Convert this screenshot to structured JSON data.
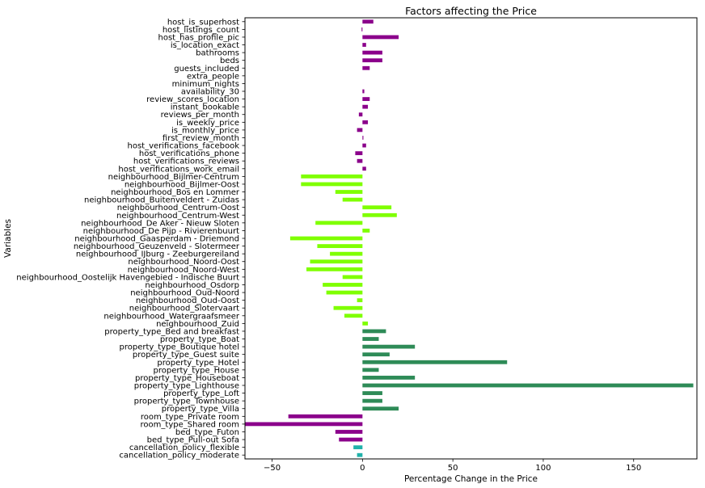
{
  "chart_data": {
    "type": "bar",
    "orientation": "horizontal",
    "title": "Factors affecting the Price",
    "xlabel": "Percentage Change in the Price",
    "ylabel": "Variables",
    "xlim": [
      -65,
      185
    ],
    "xticks": [
      -50,
      0,
      50,
      100,
      150
    ],
    "xtick_labels": [
      "−50",
      "0",
      "50",
      "100",
      "150"
    ],
    "grid": false,
    "legend": "none",
    "colors": {
      "cancellation": "#20b2aa",
      "room_bed": "#8b008b",
      "property": "#2e8b57",
      "neighbourhood": "#7fff00",
      "host_misc": "#8b008b"
    },
    "categories": [
      "cancellation_policy_moderate",
      "cancellation_policy_flexible",
      "bed_type_Pull-out Sofa",
      "bed_type_Futon",
      "room_type_Shared room",
      "room_type_Private room",
      "property_type_Villa",
      "property_type_Townhouse",
      "property_type_Loft",
      "property_type_Lighthouse",
      "property_type_Houseboat",
      "property_type_House",
      "property_type_Hotel",
      "property_type_Guest suite",
      "property_type_Boutique hotel",
      "property_type_Boat",
      "property_type_Bed and breakfast",
      "neighbourhood_Zuid",
      "neighbourhood_Watergraafsmeer",
      "neighbourhood_Slotervaart",
      "neighbourhood_Oud-Oost",
      "neighbourhood_Oud-Noord",
      "neighbourhood_Osdorp",
      "neighbourhood_Oostelijk Havengebied - Indische Buurt",
      "neighbourhood_Noord-West",
      "neighbourhood_Noord-Oost",
      "neighbourhood_IJburg - Zeeburgereiland",
      "neighbourhood_Geuzenveld - Slotermeer",
      "neighbourhood_Gaasperdam - Driemond",
      "neighbourhood_De Pijp - Rivierenbuurt",
      "neighbourhood_De Aker - Nieuw Sloten",
      "neighbourhood_Centrum-West",
      "neighbourhood_Centrum-Oost",
      "neighbourhood_Buitenveldert - Zuidas",
      "neighbourhood_Bos en Lommer",
      "neighbourhood_Bijlmer-Oost",
      "neighbourhood_Bijlmer-Centrum",
      "host_verifications_work_email",
      "host_verifications_reviews",
      "host_verifications_phone",
      "host_verifications_facebook",
      "first_review_month",
      "is_monthly_price",
      "is_weekly_price",
      "reviews_per_month",
      "instant_bookable",
      "review_scores_location",
      "availability_30",
      "minimum_nights",
      "extra_people",
      "guests_included",
      "beds",
      "bathrooms",
      "is_location_exact",
      "host_has_profile_pic",
      "host_listings_count",
      "host_is_superhost"
    ],
    "values": [
      -3,
      -5,
      -13,
      -15,
      -65,
      -41,
      20,
      11,
      11,
      183,
      29,
      9,
      80,
      15,
      29,
      9,
      13,
      3,
      -10,
      -16,
      -3,
      -20,
      -22,
      -11,
      -31,
      -29,
      -18,
      -25,
      -40,
      4,
      -26,
      19,
      16,
      -11,
      -15,
      -34,
      -34,
      2,
      -3,
      -4,
      2,
      0.5,
      -3,
      3,
      -2,
      3,
      4,
      1,
      0,
      0,
      4,
      11,
      11,
      2,
      20,
      -0.5,
      6
    ],
    "bar_colors": [
      "cancellation",
      "cancellation",
      "room_bed",
      "room_bed",
      "room_bed",
      "room_bed",
      "property",
      "property",
      "property",
      "property",
      "property",
      "property",
      "property",
      "property",
      "property",
      "property",
      "property",
      "neighbourhood",
      "neighbourhood",
      "neighbourhood",
      "neighbourhood",
      "neighbourhood",
      "neighbourhood",
      "neighbourhood",
      "neighbourhood",
      "neighbourhood",
      "neighbourhood",
      "neighbourhood",
      "neighbourhood",
      "neighbourhood",
      "neighbourhood",
      "neighbourhood",
      "neighbourhood",
      "neighbourhood",
      "neighbourhood",
      "neighbourhood",
      "neighbourhood",
      "host_misc",
      "host_misc",
      "host_misc",
      "host_misc",
      "host_misc",
      "host_misc",
      "host_misc",
      "host_misc",
      "host_misc",
      "host_misc",
      "host_misc",
      "host_misc",
      "host_misc",
      "host_misc",
      "host_misc",
      "host_misc",
      "host_misc",
      "host_misc",
      "host_misc",
      "host_misc"
    ]
  }
}
